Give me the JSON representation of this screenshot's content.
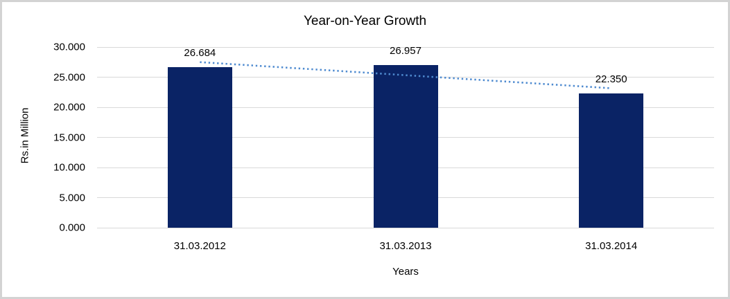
{
  "chart_data": {
    "type": "bar",
    "title": "Year-on-Year Growth",
    "xlabel": "Years",
    "ylabel": "Rs.in Million",
    "categories": [
      "31.03.2012",
      "31.03.2013",
      "31.03.2014"
    ],
    "values": [
      26.684,
      26.957,
      22.35
    ],
    "data_labels": [
      "26.684",
      "26.957",
      "22.350"
    ],
    "y_ticks": [
      {
        "value": 0,
        "label": "0.000"
      },
      {
        "value": 5,
        "label": "5.000"
      },
      {
        "value": 10,
        "label": "10.000"
      },
      {
        "value": 15,
        "label": "15.000"
      },
      {
        "value": 20,
        "label": "20.000"
      },
      {
        "value": 25,
        "label": "25.000"
      },
      {
        "value": 30,
        "label": "30.000"
      }
    ],
    "ylim": [
      0,
      30
    ],
    "grid": true,
    "legend": "none",
    "trendline": {
      "type": "linear",
      "style": "dotted",
      "start_value": 27.5,
      "end_value": 23.16
    },
    "colors": {
      "bar": "#0a2365",
      "trendline": "#4f8bd0",
      "gridline": "#d9d9d9",
      "text": "#000000",
      "frame_border": "#d3d3d3",
      "background": "#ffffff"
    }
  }
}
